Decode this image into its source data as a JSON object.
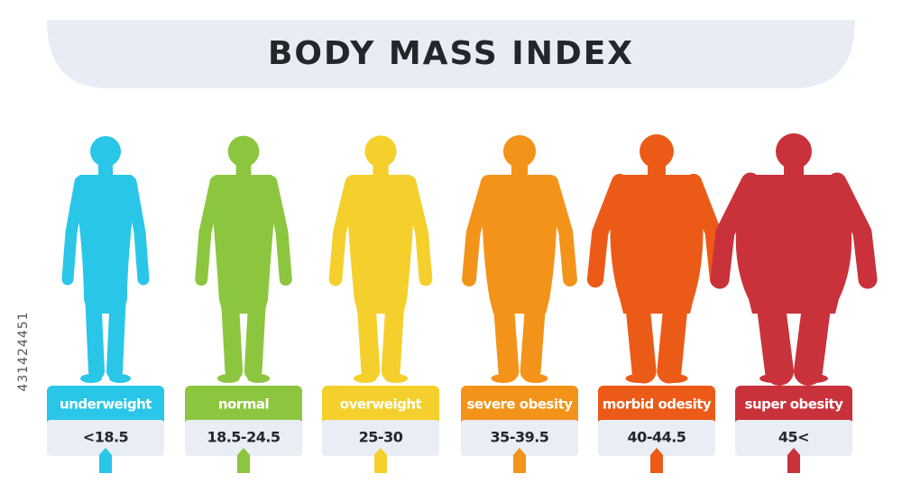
{
  "title": "BODY MASS INDEX",
  "side_id": "431424451",
  "categories": [
    {
      "label": "underweight",
      "range": "<18.5",
      "color": "#29c6e8"
    },
    {
      "label": "normal",
      "range": "18.5-24.5",
      "color": "#8cc63f"
    },
    {
      "label": "overweight",
      "range": "25-30",
      "color": "#f5cf2b"
    },
    {
      "label": "severe obesity",
      "range": "35-39.5",
      "color": "#f3931a"
    },
    {
      "label": "morbid odesity",
      "range": "40-44.5",
      "color": "#ec5a17"
    },
    {
      "label": "super obesity",
      "range": "45<",
      "color": "#c9323b"
    }
  ]
}
